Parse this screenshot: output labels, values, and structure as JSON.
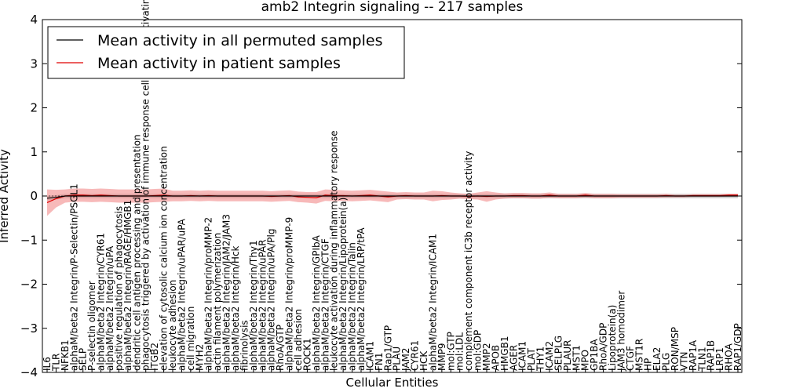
{
  "chart_data": {
    "type": "line",
    "title": "amb2 Integrin signaling -- 217 samples",
    "xlabel": "Cellular Entities",
    "ylabel": "Inferred Activity",
    "ylim": [
      -4,
      4
    ],
    "yticks": [
      -4,
      -3,
      -2,
      -1,
      0,
      1,
      2,
      3,
      4
    ],
    "grid": false,
    "legend_placement": "top-left",
    "colors": {
      "permuted": "#000000",
      "patient": "#e00000",
      "patient_band": "#f08080",
      "permuted_band": "#c8c8c8",
      "zero_line": "#000000"
    },
    "categories": [
      "IL6",
      "TLR",
      "NFKB1",
      "alphaM/beta2 Integrin/P-Selectin/PSGL1",
      "SELP",
      "P-selectin oligomer",
      "alphaM/beta2 Integrin/CYR61",
      "alphaM/beta2 Integrin/uPA",
      "positive regulation of phagocytosis",
      "alphaM/beta2 Integrin/RAGE/HMGB1",
      "dendritic cell antigen processing and presentation",
      "phagocytosis triggered by activation of immune response cell surface activating receptor",
      "ITGB2",
      "elevation of cytosolic calcium ion concentration",
      "leukocyte adhesion",
      "alphaM/beta2 Integrin/uPAR/uPA",
      "cell migration",
      "MYH2",
      "alphaM/beta2 Integrin/proMMP-2",
      "actin filament polymerization",
      "alphaM/beta2 Integrin/JAM2/JAM3",
      "alphaM/beta2 Integrin/Hck",
      "fibrinolysis",
      "alphaM/beta2 Integrin/Thy1",
      "alphaM/beta2 Integrin/uPAR",
      "alphaM/beta2 Integrin/uPA/Plg",
      "RhoA/GTP",
      "alphaM/beta2 Integrin/proMMP-9",
      "cell adhesion",
      "ROCK1",
      "alphaM/beta2 Integrin/GPIbA",
      "alphaM/beta2 Integrin/CTGF",
      "leukocyte activation during inflammatory response",
      "alphaM/beta2 Integrin/Lipoprotein(a)",
      "alphaM/beta2 Integrin/Talin",
      "alphaM/beta2 Integrin/LRP/tPA",
      "ICAM1",
      "FN1",
      "Rap1/GTP",
      "PLAU",
      "JAM2",
      "CYR61",
      "HCK",
      "alphaM/beta2 Integrin/ICAM1",
      "MMP9",
      "mol:GTP",
      "mol:LDL",
      "complement component iC3b receptor activity",
      "mol:GDP",
      "MMP2",
      "APOB",
      "HMGB1",
      "AGER",
      "ICAM1",
      "PLAT",
      "THY1",
      "ICAM2",
      "SELPLG",
      "PLAUR",
      "MST1",
      "MPO",
      "GP1BA",
      "RhoA/GDP",
      "Lipoprotein(a)",
      "JAM3 homodimer",
      "CTGF",
      "MST1R",
      "HP",
      "ELA2",
      "PLG",
      "RON/MSP",
      "VTN",
      "RAP1A",
      "TLN1",
      "RAP1B",
      "LRP1",
      "RHOA",
      "RAP1/GDP"
    ],
    "series": [
      {
        "name": "Mean activity in all permuted samples",
        "values": [
          -0.05,
          -0.03,
          0.0,
          0.0,
          0.0,
          0.0,
          0.0,
          0.0,
          0.0,
          0.0,
          0.0,
          0.0,
          0.0,
          0.0,
          0.0,
          0.0,
          0.0,
          0.0,
          0.0,
          0.0,
          0.0,
          0.0,
          0.0,
          0.0,
          0.0,
          0.0,
          0.0,
          0.0,
          0.0,
          0.0,
          0.0,
          0.0,
          0.0,
          0.0,
          0.0,
          0.0,
          0.0,
          0.0,
          0.0,
          0.0,
          0.0,
          0.0,
          0.0,
          0.0,
          0.0,
          0.0,
          0.0,
          0.0,
          0.0,
          0.0,
          0.0,
          0.0,
          0.0,
          0.0,
          0.0,
          0.0,
          0.0,
          0.0,
          0.0,
          0.0,
          0.0,
          0.0,
          0.0,
          0.0,
          0.0,
          0.0,
          0.0,
          0.0,
          0.0,
          0.0,
          0.0,
          0.0,
          0.0,
          0.0,
          0.0,
          0.0,
          0.0,
          0.0
        ],
        "std": [
          0.05,
          0.05,
          0.05,
          0.05,
          0.05,
          0.05,
          0.05,
          0.05,
          0.05,
          0.05,
          0.05,
          0.05,
          0.05,
          0.05,
          0.05,
          0.05,
          0.05,
          0.05,
          0.05,
          0.05,
          0.05,
          0.05,
          0.05,
          0.05,
          0.05,
          0.05,
          0.05,
          0.05,
          0.05,
          0.05,
          0.05,
          0.05,
          0.05,
          0.05,
          0.05,
          0.05,
          0.05,
          0.05,
          0.05,
          0.05,
          0.05,
          0.05,
          0.05,
          0.05,
          0.05,
          0.05,
          0.05,
          0.05,
          0.05,
          0.05,
          0.05,
          0.05,
          0.05,
          0.05,
          0.05,
          0.05,
          0.05,
          0.05,
          0.05,
          0.05,
          0.05,
          0.05,
          0.05,
          0.05,
          0.05,
          0.05,
          0.05,
          0.05,
          0.05,
          0.05,
          0.05,
          0.05,
          0.05,
          0.05,
          0.05,
          0.05,
          0.05,
          0.05
        ]
      },
      {
        "name": "Mean activity in patient samples",
        "values": [
          -0.15,
          -0.06,
          0.0,
          0.02,
          0.02,
          0.01,
          0.02,
          0.01,
          0.0,
          0.0,
          0.0,
          0.0,
          0.01,
          0.02,
          0.0,
          0.0,
          0.01,
          0.0,
          0.01,
          0.0,
          0.0,
          0.0,
          0.0,
          0.0,
          0.0,
          -0.01,
          0.0,
          0.01,
          -0.02,
          -0.03,
          -0.04,
          0.02,
          0.01,
          0.01,
          0.0,
          0.01,
          0.02,
          0.0,
          -0.02,
          0.0,
          0.01,
          0.0,
          0.0,
          0.0,
          0.01,
          0.0,
          0.0,
          -0.01,
          0.0,
          -0.01,
          0.0,
          0.0,
          0.01,
          0.01,
          0.0,
          0.0,
          0.02,
          0.0,
          0.0,
          0.0,
          0.02,
          0.0,
          0.0,
          0.0,
          0.0,
          0.0,
          0.0,
          0.0,
          0.0,
          0.01,
          0.0,
          0.0,
          0.01,
          0.01,
          0.01,
          0.01,
          0.02,
          0.02
        ],
        "std": [
          0.3,
          0.2,
          0.15,
          0.15,
          0.15,
          0.15,
          0.15,
          0.15,
          0.15,
          0.15,
          0.15,
          0.15,
          0.15,
          0.15,
          0.12,
          0.12,
          0.12,
          0.12,
          0.12,
          0.12,
          0.12,
          0.12,
          0.12,
          0.12,
          0.12,
          0.12,
          0.12,
          0.12,
          0.12,
          0.12,
          0.13,
          0.13,
          0.13,
          0.12,
          0.12,
          0.12,
          0.12,
          0.12,
          0.12,
          0.08,
          0.08,
          0.08,
          0.08,
          0.12,
          0.1,
          0.08,
          0.06,
          0.06,
          0.08,
          0.12,
          0.08,
          0.06,
          0.06,
          0.06,
          0.06,
          0.06,
          0.06,
          0.05,
          0.05,
          0.05,
          0.05,
          0.05,
          0.05,
          0.05,
          0.04,
          0.04,
          0.04,
          0.04,
          0.04,
          0.04,
          0.03,
          0.03,
          0.03,
          0.03,
          0.03,
          0.03,
          0.03,
          0.03
        ]
      }
    ]
  }
}
